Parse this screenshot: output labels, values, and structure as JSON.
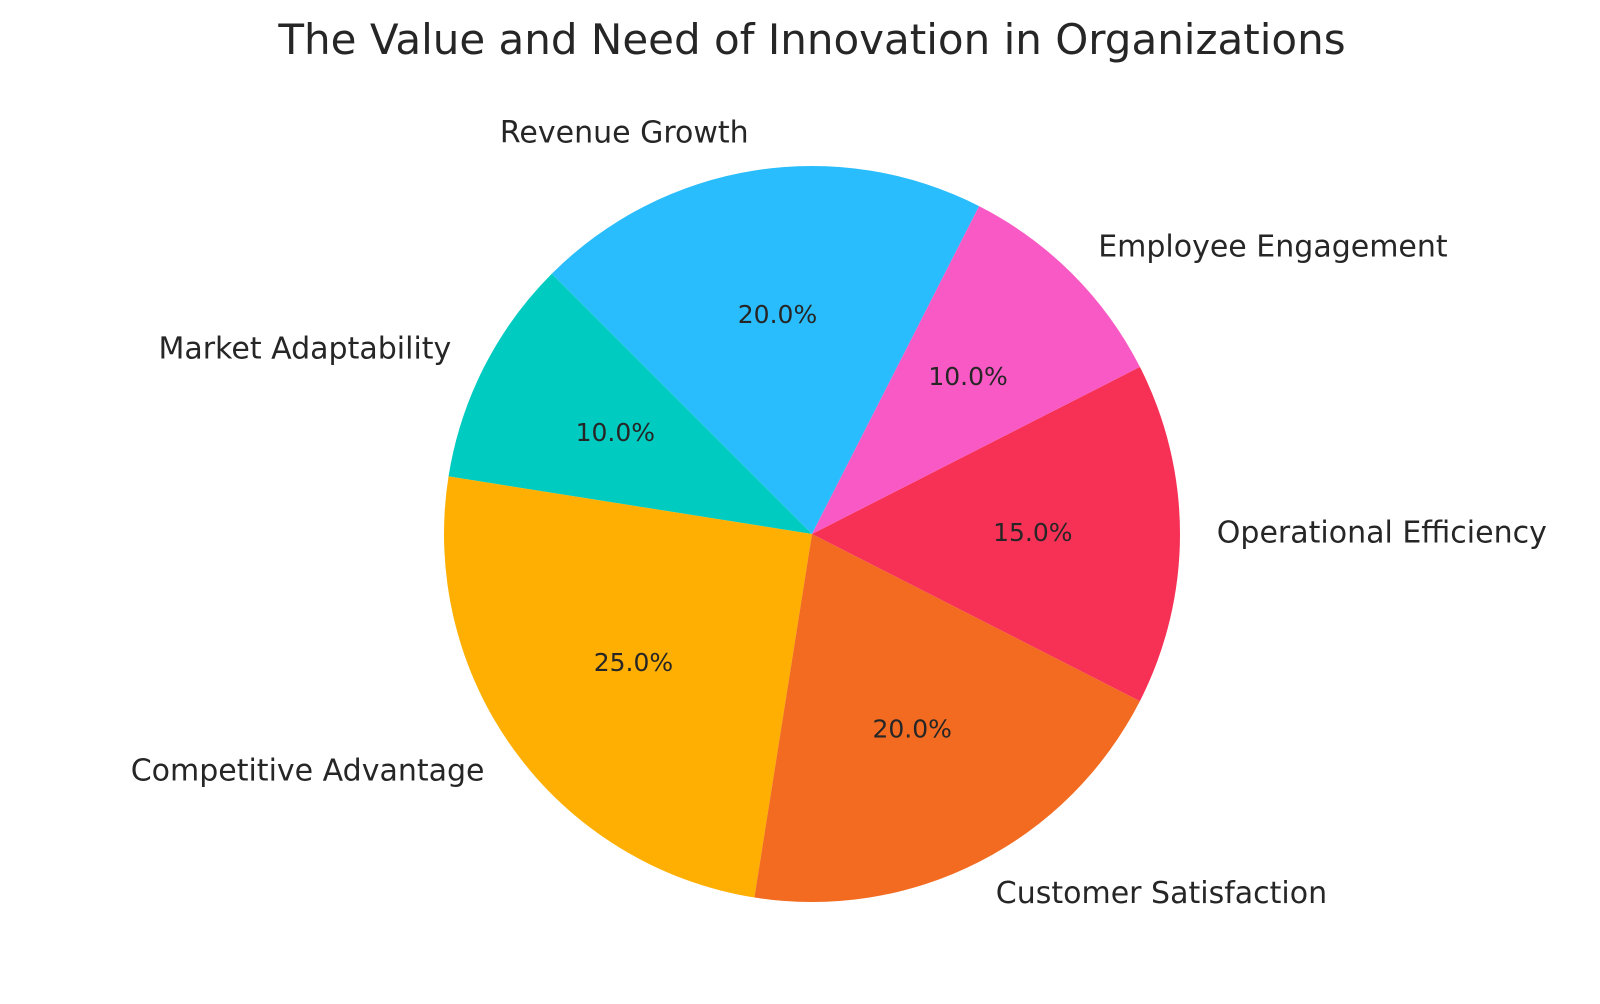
{
  "chart_data": {
    "type": "pie",
    "title": "The Value and Need of Innovation in Organizations",
    "slices": [
      {
        "label": "Revenue Growth",
        "value": 20.0,
        "pct_label": "20.0%",
        "color": "#29BDFD"
      },
      {
        "label": "Market Adaptability",
        "value": 10.0,
        "pct_label": "10.0%",
        "color": "#00CBC0"
      },
      {
        "label": "Competitive Advantage",
        "value": 25.0,
        "pct_label": "25.0%",
        "color": "#FEAF01"
      },
      {
        "label": "Customer Satisfaction",
        "value": 20.0,
        "pct_label": "20.0%",
        "color": "#F26B21"
      },
      {
        "label": "Operational Efficiency",
        "value": 15.0,
        "pct_label": "15.0%",
        "color": "#F73156"
      },
      {
        "label": "Employee Engagement",
        "value": 10.0,
        "pct_label": "10.0%",
        "color": "#F859C4"
      }
    ]
  }
}
